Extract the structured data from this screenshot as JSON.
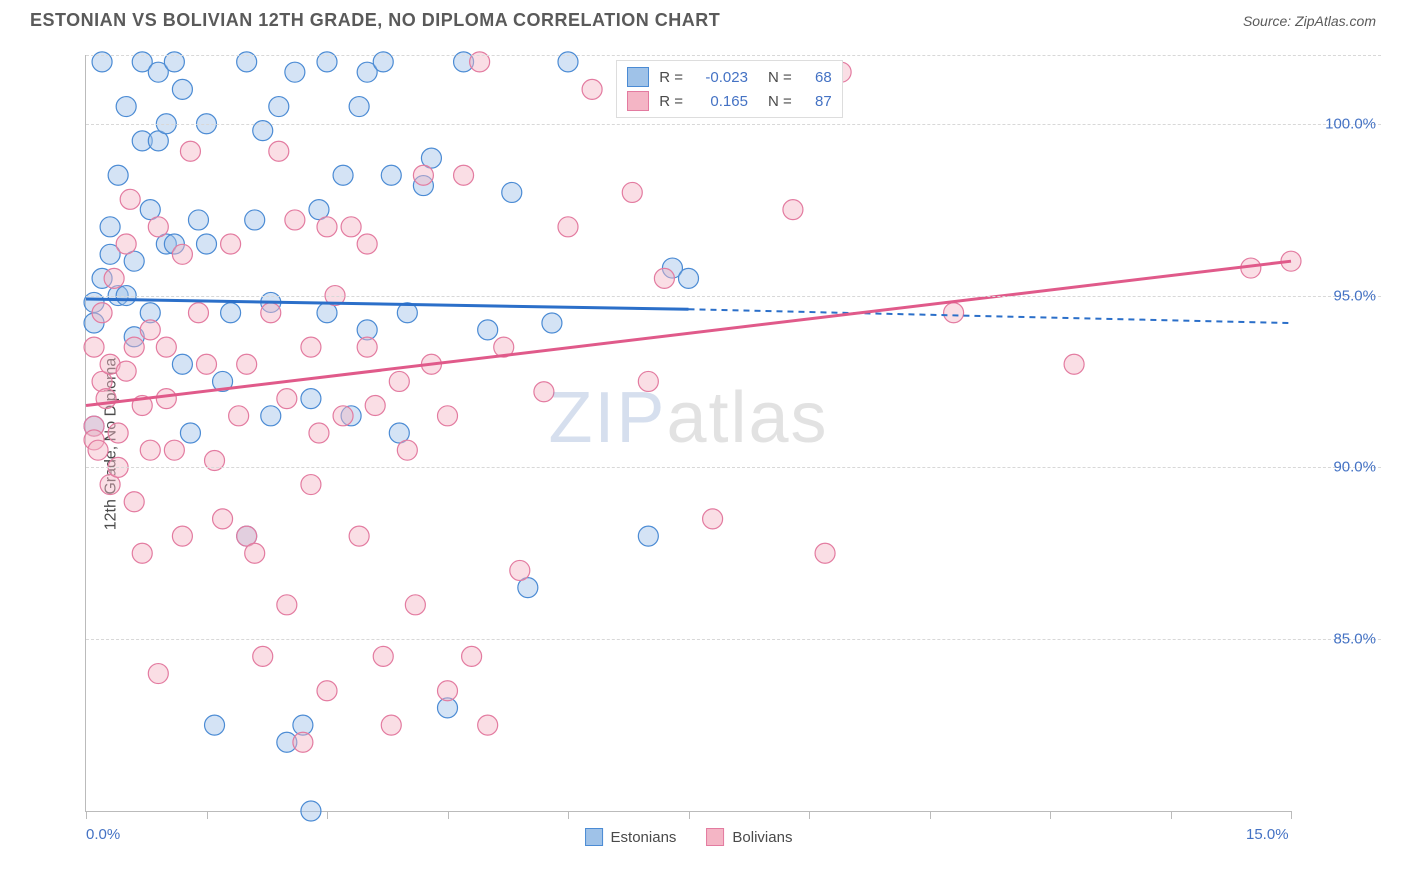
{
  "header": {
    "title": "ESTONIAN VS BOLIVIAN 12TH GRADE, NO DIPLOMA CORRELATION CHART",
    "source_prefix": "Source: ",
    "source_name": "ZipAtlas.com"
  },
  "chart": {
    "type": "scatter",
    "ylabel": "12th Grade, No Diploma",
    "background_color": "#ffffff",
    "grid_color": "#d8d8d8",
    "axis_color": "#bbbbbb",
    "ytick_label_color": "#4472c4",
    "xtick_label_color": "#4472c4",
    "label_fontsize": 16,
    "tick_fontsize": 15,
    "xlim": [
      0,
      15
    ],
    "ylim": [
      80,
      102
    ],
    "x_axis_labels": [
      {
        "pos": 0,
        "text": "0.0%"
      },
      {
        "pos": 15,
        "text": "15.0%"
      }
    ],
    "xticks": [
      0,
      1.5,
      3,
      4.5,
      6,
      7.5,
      9,
      10.5,
      12,
      13.5,
      15
    ],
    "yticks": [
      {
        "pos": 85,
        "text": "85.0%"
      },
      {
        "pos": 90,
        "text": "90.0%"
      },
      {
        "pos": 95,
        "text": "95.0%"
      },
      {
        "pos": 100,
        "text": "100.0%"
      },
      {
        "pos": 102,
        "text": ""
      }
    ],
    "watermark": {
      "zip": "ZIP",
      "atlas": "atlas"
    },
    "marker_radius": 10,
    "marker_opacity": 0.45,
    "series": [
      {
        "name": "Estonians",
        "color_fill": "#9fc2e8",
        "color_stroke": "#4b8bd4",
        "line_color": "#2b6fc9",
        "points": [
          [
            0.1,
            94.2
          ],
          [
            0.1,
            94.8
          ],
          [
            0.1,
            91.2
          ],
          [
            0.2,
            95.5
          ],
          [
            0.2,
            101.8
          ],
          [
            0.3,
            96.2
          ],
          [
            0.3,
            97.0
          ],
          [
            0.4,
            95.0
          ],
          [
            0.4,
            98.5
          ],
          [
            0.5,
            100.5
          ],
          [
            0.5,
            95.0
          ],
          [
            0.6,
            93.8
          ],
          [
            0.6,
            96.0
          ],
          [
            0.7,
            99.5
          ],
          [
            0.7,
            101.8
          ],
          [
            0.8,
            97.5
          ],
          [
            0.8,
            94.5
          ],
          [
            0.9,
            101.5
          ],
          [
            0.9,
            99.5
          ],
          [
            1.0,
            96.5
          ],
          [
            1.0,
            100.0
          ],
          [
            1.1,
            101.8
          ],
          [
            1.1,
            96.5
          ],
          [
            1.2,
            93.0
          ],
          [
            1.2,
            101.0
          ],
          [
            1.3,
            91.0
          ],
          [
            1.4,
            97.2
          ],
          [
            1.5,
            100.0
          ],
          [
            1.5,
            96.5
          ],
          [
            1.6,
            82.5
          ],
          [
            1.7,
            92.5
          ],
          [
            1.8,
            94.5
          ],
          [
            2.0,
            88.0
          ],
          [
            2.0,
            101.8
          ],
          [
            2.1,
            97.2
          ],
          [
            2.2,
            99.8
          ],
          [
            2.3,
            94.8
          ],
          [
            2.3,
            91.5
          ],
          [
            2.4,
            100.5
          ],
          [
            2.5,
            82.0
          ],
          [
            2.6,
            101.5
          ],
          [
            2.7,
            82.5
          ],
          [
            2.8,
            92.0
          ],
          [
            2.8,
            80.0
          ],
          [
            2.9,
            97.5
          ],
          [
            3.0,
            101.8
          ],
          [
            3.0,
            94.5
          ],
          [
            3.2,
            98.5
          ],
          [
            3.3,
            91.5
          ],
          [
            3.4,
            100.5
          ],
          [
            3.5,
            101.5
          ],
          [
            3.5,
            94.0
          ],
          [
            3.7,
            101.8
          ],
          [
            3.8,
            98.5
          ],
          [
            3.9,
            91.0
          ],
          [
            4.0,
            94.5
          ],
          [
            4.2,
            98.2
          ],
          [
            4.3,
            99.0
          ],
          [
            4.5,
            83.0
          ],
          [
            4.7,
            101.8
          ],
          [
            5.0,
            94.0
          ],
          [
            5.3,
            98.0
          ],
          [
            5.5,
            86.5
          ],
          [
            5.8,
            94.2
          ],
          [
            6.0,
            101.8
          ],
          [
            7.0,
            88.0
          ],
          [
            7.3,
            95.8
          ],
          [
            7.5,
            95.5
          ]
        ],
        "trend": {
          "x1": 0,
          "y1": 94.9,
          "x2": 7.5,
          "y2": 94.6,
          "ext_x2": 15,
          "ext_y2": 94.2
        }
      },
      {
        "name": "Bolivians",
        "color_fill": "#f4b5c5",
        "color_stroke": "#e37ba0",
        "line_color": "#e05a8a",
        "points": [
          [
            0.1,
            91.2
          ],
          [
            0.1,
            93.5
          ],
          [
            0.1,
            90.8
          ],
          [
            0.15,
            90.5
          ],
          [
            0.2,
            92.5
          ],
          [
            0.2,
            94.5
          ],
          [
            0.25,
            92.0
          ],
          [
            0.3,
            89.5
          ],
          [
            0.3,
            93.0
          ],
          [
            0.35,
            95.5
          ],
          [
            0.4,
            91.0
          ],
          [
            0.4,
            90.0
          ],
          [
            0.5,
            96.5
          ],
          [
            0.5,
            92.8
          ],
          [
            0.55,
            97.8
          ],
          [
            0.6,
            89.0
          ],
          [
            0.6,
            93.5
          ],
          [
            0.7,
            91.8
          ],
          [
            0.7,
            87.5
          ],
          [
            0.8,
            94.0
          ],
          [
            0.8,
            90.5
          ],
          [
            0.9,
            84.0
          ],
          [
            0.9,
            97.0
          ],
          [
            1.0,
            92.0
          ],
          [
            1.0,
            93.5
          ],
          [
            1.1,
            90.5
          ],
          [
            1.2,
            96.2
          ],
          [
            1.2,
            88.0
          ],
          [
            1.3,
            99.2
          ],
          [
            1.4,
            94.5
          ],
          [
            1.5,
            93.0
          ],
          [
            1.6,
            90.2
          ],
          [
            1.7,
            88.5
          ],
          [
            1.8,
            96.5
          ],
          [
            1.9,
            91.5
          ],
          [
            2.0,
            88.0
          ],
          [
            2.0,
            93.0
          ],
          [
            2.1,
            87.5
          ],
          [
            2.2,
            84.5
          ],
          [
            2.3,
            94.5
          ],
          [
            2.4,
            99.2
          ],
          [
            2.5,
            86.0
          ],
          [
            2.5,
            92.0
          ],
          [
            2.6,
            97.2
          ],
          [
            2.7,
            82.0
          ],
          [
            2.8,
            93.5
          ],
          [
            2.8,
            89.5
          ],
          [
            2.9,
            91.0
          ],
          [
            3.0,
            97.0
          ],
          [
            3.0,
            83.5
          ],
          [
            3.1,
            95.0
          ],
          [
            3.2,
            91.5
          ],
          [
            3.3,
            97.0
          ],
          [
            3.4,
            88.0
          ],
          [
            3.5,
            93.5
          ],
          [
            3.5,
            96.5
          ],
          [
            3.6,
            91.8
          ],
          [
            3.7,
            84.5
          ],
          [
            3.8,
            82.5
          ],
          [
            3.9,
            92.5
          ],
          [
            4.0,
            90.5
          ],
          [
            4.1,
            86.0
          ],
          [
            4.2,
            98.5
          ],
          [
            4.3,
            93.0
          ],
          [
            4.5,
            83.5
          ],
          [
            4.5,
            91.5
          ],
          [
            4.7,
            98.5
          ],
          [
            4.8,
            84.5
          ],
          [
            4.9,
            101.8
          ],
          [
            5.0,
            82.5
          ],
          [
            5.2,
            93.5
          ],
          [
            5.4,
            87.0
          ],
          [
            5.7,
            92.2
          ],
          [
            6.0,
            97.0
          ],
          [
            6.3,
            101.0
          ],
          [
            6.8,
            98.0
          ],
          [
            7.0,
            92.5
          ],
          [
            7.2,
            95.5
          ],
          [
            7.5,
            101.0
          ],
          [
            7.8,
            88.5
          ],
          [
            8.8,
            97.5
          ],
          [
            9.2,
            87.5
          ],
          [
            9.4,
            101.5
          ],
          [
            10.8,
            94.5
          ],
          [
            12.3,
            93.0
          ],
          [
            14.5,
            95.8
          ],
          [
            15.0,
            96.0
          ]
        ],
        "trend": {
          "x1": 0,
          "y1": 91.8,
          "x2": 15,
          "y2": 96.0
        }
      }
    ],
    "top_legend": {
      "rows": [
        {
          "series_idx": 0,
          "r_label": "R =",
          "r_val": "-0.023",
          "n_label": "N =",
          "n_val": "68"
        },
        {
          "series_idx": 1,
          "r_label": "R =",
          "r_val": "0.165",
          "n_label": "N =",
          "n_val": "87"
        }
      ]
    },
    "bottom_legend": {
      "items": [
        {
          "series_idx": 0,
          "label": "Estonians"
        },
        {
          "series_idx": 1,
          "label": "Bolivians"
        }
      ]
    }
  }
}
